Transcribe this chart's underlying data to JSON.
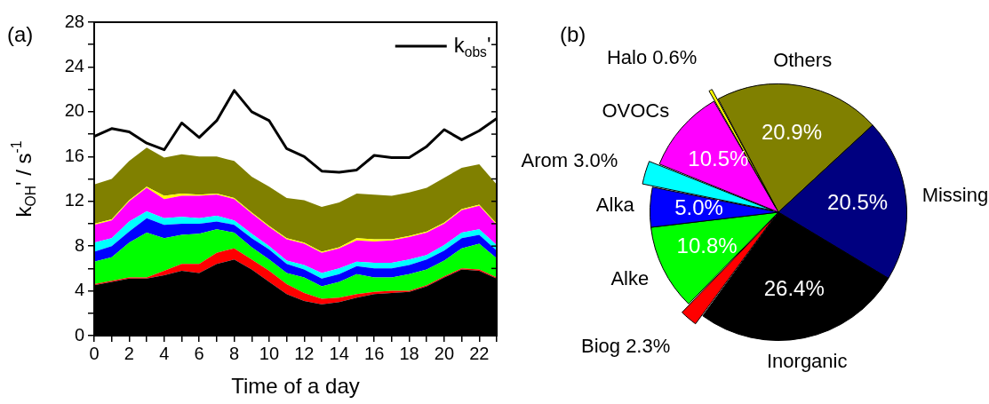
{
  "chart_data": [
    {
      "type": "area",
      "title": "(a)",
      "xlabel": "Time of a day",
      "ylabel": "k$_{OH}$' / s$^{-1}$",
      "stacked": true,
      "grid": false,
      "legend": "top right",
      "x": [
        0,
        1,
        2,
        3,
        4,
        5,
        6,
        7,
        8,
        9,
        10,
        11,
        12,
        13,
        14,
        15,
        16,
        17,
        18,
        19,
        20,
        21,
        22,
        23
      ],
      "xlim": [
        0,
        23
      ],
      "xticks": [
        0,
        {
          "value": 1,
          "label": null
        },
        2,
        {
          "value": 3,
          "label": null
        },
        4,
        {
          "value": 5,
          "label": null
        },
        6,
        {
          "value": 7,
          "label": null
        },
        8,
        {
          "value": 9,
          "label": null
        },
        10,
        {
          "value": 11,
          "label": null
        },
        12,
        {
          "value": 13,
          "label": null
        },
        14,
        {
          "value": 15,
          "label": null
        },
        16,
        {
          "value": 17,
          "label": null
        },
        18,
        {
          "value": 19,
          "label": null
        },
        20,
        {
          "value": 21,
          "label": null
        },
        22,
        {
          "value": 23,
          "label": null
        }
      ],
      "ylim": [
        0,
        28
      ],
      "yticks": [
        0,
        {
          "value": 2,
          "label": null
        },
        4,
        {
          "value": 6,
          "label": null
        },
        8,
        {
          "value": 10,
          "label": null
        },
        12,
        {
          "value": 14,
          "label": null
        },
        16,
        {
          "value": 18,
          "label": null
        },
        20,
        {
          "value": 22,
          "label": null
        },
        24,
        {
          "value": 26,
          "label": null
        },
        28
      ],
      "series": [
        {
          "color": "#000000",
          "values": [
            4.5,
            4.8,
            5.1,
            5.1,
            5.4,
            5.8,
            5.6,
            6.4,
            6.8,
            5.9,
            4.8,
            3.7,
            3.1,
            2.8,
            3.0,
            3.4,
            3.7,
            3.8,
            3.9,
            4.4,
            5.2,
            5.9,
            5.8,
            5.1
          ]
        },
        {
          "color": "#ff0000",
          "values": [
            0.1,
            0.1,
            0.1,
            0.1,
            0.4,
            0.6,
            0.8,
            1.0,
            1.0,
            0.9,
            1.0,
            0.9,
            0.7,
            0.5,
            0.4,
            0.3,
            0.2,
            0.2,
            0.1,
            0.1,
            0.1,
            0.1,
            0.1,
            0.1
          ]
        },
        {
          "color": "#00ff00",
          "values": [
            2.0,
            2.1,
            3.1,
            4.0,
            2.9,
            2.6,
            2.7,
            2.1,
            1.4,
            1.1,
            1.0,
            1.0,
            1.4,
            1.1,
            1.4,
            1.8,
            1.3,
            1.2,
            1.5,
            1.4,
            1.4,
            1.8,
            2.3,
            1.7
          ]
        },
        {
          "color": "#0000ff",
          "values": [
            0.9,
            1.0,
            1.0,
            1.3,
            1.2,
            1.0,
            0.9,
            0.7,
            0.7,
            0.8,
            0.9,
            0.8,
            0.7,
            0.7,
            0.7,
            0.7,
            0.8,
            0.8,
            0.8,
            0.9,
            0.9,
            0.9,
            0.8,
            0.7
          ]
        },
        {
          "color": "#00ffff",
          "values": [
            0.8,
            0.7,
            0.9,
            0.6,
            0.6,
            0.6,
            0.5,
            0.5,
            0.4,
            0.4,
            0.3,
            0.3,
            0.4,
            0.5,
            0.5,
            0.4,
            0.5,
            0.5,
            0.5,
            0.4,
            0.5,
            0.5,
            0.5,
            0.5
          ]
        },
        {
          "color": "#ff00ff",
          "values": [
            1.6,
            1.6,
            1.8,
            2.1,
            1.7,
            1.9,
            2.0,
            1.9,
            1.9,
            1.8,
            1.7,
            1.9,
            1.9,
            1.8,
            1.8,
            1.9,
            1.9,
            2.0,
            2.0,
            2.0,
            1.9,
            2.0,
            2.1,
            1.8
          ]
        },
        {
          "color": "#ffff00",
          "values": [
            0.1,
            0.1,
            0.1,
            0.1,
            0.3,
            0.2,
            0.1,
            0.1,
            0.1,
            0.1,
            0.1,
            0.1,
            0.1,
            0.1,
            0.1,
            0.2,
            0.2,
            0.1,
            0.1,
            0.1,
            0.1,
            0.1,
            0.1,
            0.1
          ]
        },
        {
          "color": "#808000",
          "values": [
            3.5,
            3.6,
            3.5,
            3.5,
            3.4,
            3.5,
            3.4,
            3.3,
            3.3,
            3.2,
            3.5,
            3.6,
            3.8,
            4.0,
            4.0,
            4.0,
            4.0,
            3.9,
            3.9,
            3.9,
            4.0,
            3.7,
            3.6,
            3.5
          ]
        },
        {
          "type": "line",
          "name": "k$_{obs}$'",
          "color": "#000000",
          "values": [
            17.8,
            18.5,
            18.2,
            17.2,
            16.6,
            19.0,
            17.7,
            19.2,
            21.9,
            20.0,
            19.2,
            16.7,
            16.0,
            14.7,
            14.6,
            14.8,
            16.1,
            15.9,
            15.9,
            16.9,
            18.4,
            17.5,
            18.3,
            19.4
          ]
        }
      ]
    },
    {
      "type": "pie",
      "title": "(b)",
      "categories": [
        "Others",
        "Missing",
        "Inorganic",
        "Biog 2.3%",
        "Alke",
        "Alka",
        "Arom 3.0%",
        "OVOCs",
        "Halo 0.6%"
      ],
      "values": [
        20.9,
        20.5,
        26.4,
        2.3,
        10.8,
        5.0,
        3.0,
        10.5,
        0.6
      ],
      "value_labels": [
        "20.9%",
        "20.5%",
        "26.4%",
        null,
        "10.8%",
        "5.0%",
        null,
        "10.5%",
        null
      ],
      "colors": [
        "#808000",
        "#000080",
        "#000000",
        "#ff0000",
        "#00ff00",
        "#0000ff",
        "#00ffff",
        "#ff00ff",
        "#ffff00"
      ]
    }
  ]
}
